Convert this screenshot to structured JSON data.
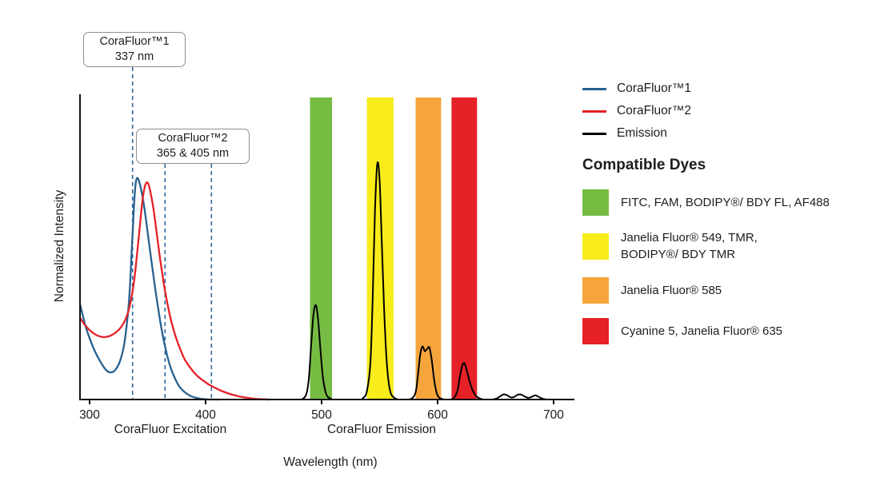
{
  "chart_data": {
    "type": "line",
    "title": "",
    "xlabel": "Wavelength (nm)",
    "ylabel": "Normalized Intensity",
    "x_ticks": [
      300,
      400,
      500,
      600,
      700
    ],
    "xlim": [
      292,
      718
    ],
    "ylim": [
      0,
      1.3
    ],
    "grid": false,
    "legend_position": "right",
    "x_section_labels": [
      {
        "label": "CoraFluor Excitation"
      },
      {
        "label": "CoraFluor Emission"
      }
    ],
    "series": [
      {
        "name": "CoraFluor™1",
        "color": "#27618f",
        "points": [
          [
            292,
            0.4
          ],
          [
            296,
            0.32
          ],
          [
            300,
            0.26
          ],
          [
            305,
            0.2
          ],
          [
            310,
            0.155
          ],
          [
            314,
            0.126
          ],
          [
            318,
            0.115
          ],
          [
            322,
            0.125
          ],
          [
            326,
            0.16
          ],
          [
            330,
            0.24
          ],
          [
            334,
            0.42
          ],
          [
            337,
            0.7
          ],
          [
            339,
            0.88
          ],
          [
            341,
            0.94
          ],
          [
            344,
            0.9
          ],
          [
            347,
            0.82
          ],
          [
            350,
            0.71
          ],
          [
            353,
            0.6
          ],
          [
            356,
            0.49
          ],
          [
            359,
            0.39
          ],
          [
            362,
            0.3
          ],
          [
            365,
            0.225
          ],
          [
            368,
            0.165
          ],
          [
            371,
            0.12
          ],
          [
            374,
            0.085
          ],
          [
            377,
            0.058
          ],
          [
            380,
            0.04
          ],
          [
            384,
            0.024
          ],
          [
            388,
            0.013
          ],
          [
            392,
            0.007
          ],
          [
            396,
            0.003
          ],
          [
            400,
            0.001
          ],
          [
            404,
            0
          ],
          [
            412,
            0
          ]
        ]
      },
      {
        "name": "CoraFluor™2",
        "color": "#e42127",
        "points": [
          [
            292,
            0.345
          ],
          [
            296,
            0.316
          ],
          [
            300,
            0.295
          ],
          [
            305,
            0.276
          ],
          [
            310,
            0.266
          ],
          [
            315,
            0.266
          ],
          [
            320,
            0.276
          ],
          [
            325,
            0.295
          ],
          [
            330,
            0.33
          ],
          [
            334,
            0.385
          ],
          [
            338,
            0.49
          ],
          [
            341,
            0.62
          ],
          [
            344,
            0.77
          ],
          [
            346,
            0.86
          ],
          [
            348,
            0.91
          ],
          [
            350,
            0.92
          ],
          [
            352,
            0.89
          ],
          [
            355,
            0.81
          ],
          [
            358,
            0.7
          ],
          [
            361,
            0.59
          ],
          [
            364,
            0.49
          ],
          [
            367,
            0.41
          ],
          [
            370,
            0.34
          ],
          [
            374,
            0.27
          ],
          [
            378,
            0.215
          ],
          [
            382,
            0.17
          ],
          [
            386,
            0.14
          ],
          [
            390,
            0.115
          ],
          [
            394,
            0.095
          ],
          [
            398,
            0.08
          ],
          [
            402,
            0.066
          ],
          [
            406,
            0.055
          ],
          [
            410,
            0.045
          ],
          [
            415,
            0.034
          ],
          [
            420,
            0.025
          ],
          [
            425,
            0.018
          ],
          [
            430,
            0.012
          ],
          [
            435,
            0.008
          ],
          [
            440,
            0.004
          ],
          [
            445,
            0.002
          ],
          [
            450,
            0.001
          ],
          [
            456,
            0
          ]
        ]
      },
      {
        "name": "Emission",
        "color": "#000000",
        "points": [
          [
            460,
            0
          ],
          [
            480,
            0
          ],
          [
            484,
            0.004
          ],
          [
            487,
            0.025
          ],
          [
            489,
            0.09
          ],
          [
            491,
            0.23
          ],
          [
            493,
            0.36
          ],
          [
            495,
            0.4
          ],
          [
            497,
            0.34
          ],
          [
            499,
            0.21
          ],
          [
            501,
            0.1
          ],
          [
            503,
            0.04
          ],
          [
            505,
            0.013
          ],
          [
            508,
            0.003
          ],
          [
            511,
            0
          ],
          [
            525,
            0
          ],
          [
            533,
            0
          ],
          [
            536,
            0.007
          ],
          [
            539,
            0.035
          ],
          [
            542,
            0.15
          ],
          [
            544,
            0.42
          ],
          [
            546,
            0.8
          ],
          [
            548,
            1.0
          ],
          [
            550,
            0.93
          ],
          [
            552,
            0.65
          ],
          [
            554,
            0.37
          ],
          [
            556,
            0.17
          ],
          [
            558,
            0.065
          ],
          [
            560,
            0.022
          ],
          [
            563,
            0.006
          ],
          [
            566,
            0
          ],
          [
            574,
            0
          ],
          [
            578,
            0.005
          ],
          [
            581,
            0.03
          ],
          [
            583,
            0.1
          ],
          [
            585,
            0.19
          ],
          [
            587,
            0.225
          ],
          [
            589,
            0.205
          ],
          [
            591,
            0.215
          ],
          [
            593,
            0.22
          ],
          [
            595,
            0.165
          ],
          [
            597,
            0.085
          ],
          [
            599,
            0.032
          ],
          [
            601,
            0.01
          ],
          [
            604,
            0.002
          ],
          [
            607,
            0
          ],
          [
            611,
            0
          ],
          [
            614,
            0.006
          ],
          [
            617,
            0.035
          ],
          [
            619,
            0.09
          ],
          [
            621,
            0.14
          ],
          [
            623,
            0.155
          ],
          [
            625,
            0.125
          ],
          [
            628,
            0.07
          ],
          [
            631,
            0.03
          ],
          [
            634,
            0.011
          ],
          [
            637,
            0.003
          ],
          [
            640,
            0
          ],
          [
            647,
            0
          ],
          [
            651,
            0.005
          ],
          [
            654,
            0.014
          ],
          [
            657,
            0.022
          ],
          [
            660,
            0.018
          ],
          [
            663,
            0.009
          ],
          [
            666,
            0.011
          ],
          [
            669,
            0.02
          ],
          [
            672,
            0.021
          ],
          [
            675,
            0.013
          ],
          [
            678,
            0.007
          ],
          [
            681,
            0.011
          ],
          [
            684,
            0.018
          ],
          [
            687,
            0.012
          ],
          [
            690,
            0.004
          ],
          [
            693,
            0.001
          ],
          [
            696,
            0
          ],
          [
            706,
            0
          ]
        ]
      }
    ],
    "dye_bands": [
      {
        "range_nm": [
          490,
          509
        ],
        "color": "#76bc43",
        "dyes": "FITC, FAM, BODIPY®/ BDY FL, AF488"
      },
      {
        "range_nm": [
          539,
          562
        ],
        "color": "#f8ec1a",
        "dyes": "Janelia Fluor® 549, TMR, BODIPY®/ BDY TMR"
      },
      {
        "range_nm": [
          581,
          603
        ],
        "color": "#f5a53c",
        "dyes": "Janelia Fluor® 585"
      },
      {
        "range_nm": [
          612,
          634
        ],
        "color": "#e62128",
        "dyes": "Cyanine 5, Janelia Fluor® 635"
      }
    ],
    "annotations": [
      {
        "title": "CoraFluor™1",
        "value": "337 nm",
        "marker_nm": [
          337
        ]
      },
      {
        "title": "CoraFluor™2",
        "value": "365 & 405 nm",
        "marker_nm": [
          365,
          405
        ]
      }
    ]
  },
  "legend": {
    "series": [
      {
        "label": "CoraFluor™1",
        "color": "#27618f"
      },
      {
        "label": "CoraFluor™2",
        "color": "#e42127"
      },
      {
        "label": "Emission",
        "color": "#000000"
      }
    ],
    "compatible_dyes_heading": "Compatible Dyes",
    "dyes": [
      {
        "color": "#76bc43",
        "label": "FITC, FAM, BODIPY®/ BDY FL, AF488"
      },
      {
        "color": "#f8ec1a",
        "label": "Janelia Fluor® 549, TMR,\nBODIPY®/ BDY TMR"
      },
      {
        "color": "#f5a53c",
        "label": "Janelia Fluor® 585"
      },
      {
        "color": "#e62128",
        "label": "Cyanine 5, Janelia Fluor® 635"
      }
    ]
  }
}
